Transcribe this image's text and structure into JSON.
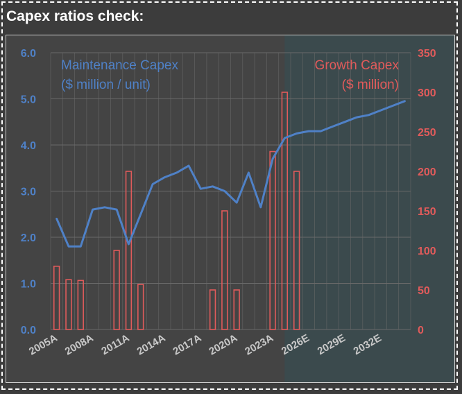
{
  "header": {
    "title": "Capex ratios check:"
  },
  "colors": {
    "maintenance": "#4f81c7",
    "growth": "#e15b5b",
    "forecast_shade": "#3b4a4d",
    "grid": "#6a6a6a"
  },
  "chart_data": {
    "type": "bar+line",
    "left_axis": {
      "label_lines": [
        "Maintenance Capex",
        "($ million / unit)"
      ],
      "min": 0,
      "max": 6,
      "ticks": [
        "0.0",
        "1.0",
        "2.0",
        "3.0",
        "4.0",
        "5.0",
        "6.0"
      ]
    },
    "right_axis": {
      "label_lines": [
        "Growth Capex",
        "($ million)"
      ],
      "min": 0,
      "max": 350,
      "ticks": [
        "0",
        "50",
        "100",
        "150",
        "200",
        "250",
        "300",
        "350"
      ]
    },
    "x_tick_labels": [
      "2005A",
      "2008A",
      "2011A",
      "2014A",
      "2017A",
      "2020A",
      "2023A",
      "2026E",
      "2029E",
      "2032E"
    ],
    "years": [
      "2005A",
      "2006A",
      "2007A",
      "2008A",
      "2009A",
      "2010A",
      "2011A",
      "2012A",
      "2013A",
      "2014A",
      "2015A",
      "2016A",
      "2017A",
      "2018A",
      "2019A",
      "2020A",
      "2021A",
      "2022A",
      "2023A",
      "2024A",
      "2025E",
      "2026E",
      "2027E",
      "2028E",
      "2029E",
      "2030E",
      "2031E",
      "2032E",
      "2033E",
      "2034E"
    ],
    "forecast_start_index": 19.5,
    "series": [
      {
        "name": "Maintenance Capex",
        "type": "line",
        "axis": "left",
        "values": [
          2.4,
          1.8,
          1.8,
          2.6,
          2.65,
          2.6,
          1.85,
          2.5,
          3.15,
          3.3,
          3.4,
          3.55,
          3.05,
          3.1,
          3.0,
          2.75,
          3.4,
          2.65,
          3.7,
          4.15,
          4.25,
          4.3,
          4.3,
          4.4,
          4.5,
          4.6,
          4.65,
          4.75,
          4.85,
          4.95
        ]
      },
      {
        "name": "Growth Capex",
        "type": "bar",
        "axis": "right",
        "values": [
          80,
          63,
          62,
          0,
          0,
          100,
          200,
          57,
          0,
          0,
          0,
          0,
          0,
          50,
          150,
          50,
          0,
          0,
          225,
          300,
          200,
          0,
          0,
          0,
          0,
          0,
          0,
          0,
          0,
          0
        ]
      }
    ],
    "grid": true,
    "legend": "none"
  }
}
